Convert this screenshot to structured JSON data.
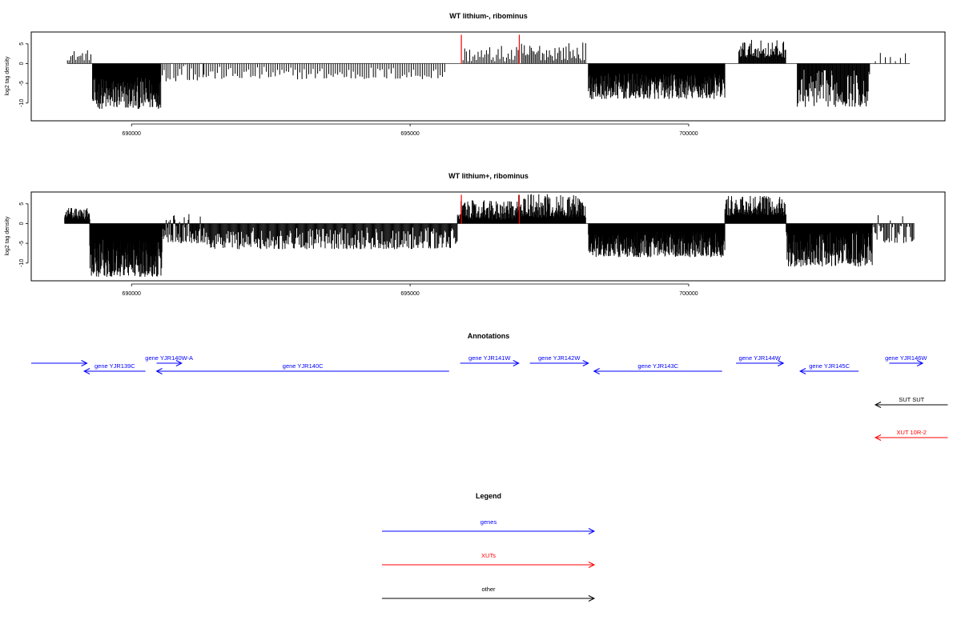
{
  "chart_data": [
    {
      "type": "bar",
      "title": "WT lithium-, ribominus",
      "xlabel": "",
      "ylabel": "log2 tag density",
      "xlim": [
        688200,
        704600
      ],
      "ylim": [
        -14.5,
        8
      ],
      "x_ticks": [
        690000,
        695000,
        700000
      ],
      "x_tick_labels": [
        "690000",
        "695000",
        "700000"
      ],
      "y_ticks": [
        5,
        0,
        -5,
        -10
      ],
      "y_tick_labels": [
        "5",
        "0",
        "-5",
        "-10"
      ],
      "bar_color": "#000000",
      "highlight_color": "#ff0000",
      "highlights": [
        {
          "x": 695920,
          "value": 7.3
        },
        {
          "x": 696960,
          "value": 7.3
        }
      ],
      "regions": [
        {
          "from": 688850,
          "to": 689290,
          "min": 0.8,
          "max": 3.5,
          "step": 30
        },
        {
          "from": 689300,
          "to": 690530,
          "min": -11.5,
          "max": -3.5,
          "step": 8
        },
        {
          "from": 690550,
          "to": 691300,
          "min": -4.5,
          "max": 2.5,
          "step": 35
        },
        {
          "from": 691300,
          "to": 695650,
          "min": -4,
          "max": -0.8,
          "step": 40
        },
        {
          "from": 695950,
          "to": 696950,
          "min": 0.5,
          "max": 4.5,
          "step": 30
        },
        {
          "from": 697000,
          "to": 698150,
          "min": 0.8,
          "max": 5.5,
          "step": 25
        },
        {
          "from": 698200,
          "to": 700650,
          "min": -9,
          "max": -2.5,
          "step": 8
        },
        {
          "from": 700900,
          "to": 701750,
          "min": 1.5,
          "max": 6,
          "step": 12
        },
        {
          "from": 701950,
          "to": 703250,
          "min": -11,
          "max": -1.5,
          "step": 12
        },
        {
          "from": 703350,
          "to": 703970,
          "min": 0.3,
          "max": 2.8,
          "step": 90
        }
      ]
    },
    {
      "type": "bar",
      "title": "WT lithium+, ribominus",
      "xlabel": "",
      "ylabel": "log2 tag density",
      "xlim": [
        688200,
        704600
      ],
      "ylim": [
        -14.5,
        8
      ],
      "x_ticks": [
        690000,
        695000,
        700000
      ],
      "x_tick_labels": [
        "690000",
        "695000",
        "700000"
      ],
      "y_ticks": [
        5,
        0,
        -5,
        -10
      ],
      "y_tick_labels": [
        "5",
        "0",
        "-5",
        "-10"
      ],
      "bar_color": "#000000",
      "highlight_color": "#ff0000",
      "highlights": [
        {
          "x": 695920,
          "value": 7.3
        },
        {
          "x": 696960,
          "value": 7.3
        }
      ],
      "regions": [
        {
          "from": 688800,
          "to": 689250,
          "min": 1,
          "max": 4,
          "step": 6
        },
        {
          "from": 689250,
          "to": 690550,
          "min": -13.5,
          "max": -4,
          "step": 6
        },
        {
          "from": 690550,
          "to": 691300,
          "min": -5,
          "max": 3.5,
          "step": 12
        },
        {
          "from": 691300,
          "to": 695850,
          "min": -6.5,
          "max": -1,
          "step": 15
        },
        {
          "from": 695850,
          "to": 696950,
          "min": 1,
          "max": 6,
          "step": 8
        },
        {
          "from": 696950,
          "to": 698150,
          "min": 1.5,
          "max": 7.5,
          "step": 8
        },
        {
          "from": 698200,
          "to": 700650,
          "min": -8.5,
          "max": -2,
          "step": 6
        },
        {
          "from": 700650,
          "to": 701750,
          "min": 2,
          "max": 7,
          "step": 8
        },
        {
          "from": 701750,
          "to": 703300,
          "min": -11,
          "max": -2,
          "step": 8
        },
        {
          "from": 703300,
          "to": 704050,
          "min": -5,
          "max": 2.5,
          "step": 20
        }
      ]
    }
  ],
  "annotations": {
    "title": "Annotations",
    "features": [
      {
        "label": "",
        "from": 688200,
        "to": 689200,
        "strand": "+",
        "lane": "upper",
        "color": "#0000ff"
      },
      {
        "label": "gene YJR139C",
        "from": 689150,
        "to": 690250,
        "strand": "-",
        "lane": "lower",
        "color": "#0000ff"
      },
      {
        "label": "gene YJR140W-A",
        "from": 690450,
        "to": 690900,
        "strand": "+",
        "lane": "upper",
        "color": "#0000ff"
      },
      {
        "label": "gene YJR140C",
        "from": 690450,
        "to": 695700,
        "strand": "-",
        "lane": "lower",
        "color": "#0000ff"
      },
      {
        "label": "gene YJR141W",
        "from": 695900,
        "to": 696950,
        "strand": "+",
        "lane": "upper",
        "color": "#0000ff"
      },
      {
        "label": "gene YJR142W",
        "from": 697150,
        "to": 698200,
        "strand": "+",
        "lane": "upper",
        "color": "#0000ff"
      },
      {
        "label": "gene YJR143C",
        "from": 698300,
        "to": 700600,
        "strand": "-",
        "lane": "lower",
        "color": "#0000ff"
      },
      {
        "label": "gene YJR144W",
        "from": 700850,
        "to": 701700,
        "strand": "+",
        "lane": "upper",
        "color": "#0000ff"
      },
      {
        "label": "gene YJR145C",
        "from": 702000,
        "to": 703050,
        "strand": "-",
        "lane": "lower",
        "color": "#0000ff"
      },
      {
        "label": "gene YJR146W",
        "from": 703600,
        "to": 704200,
        "strand": "+",
        "lane": "upper",
        "color": "#0000ff"
      },
      {
        "label": "SUT SUT",
        "from": 703350,
        "to": 704650,
        "strand": "-",
        "lane": "sut",
        "color": "#000000"
      },
      {
        "label": "XUT 10R-2",
        "from": 703350,
        "to": 704650,
        "strand": "-",
        "lane": "xut",
        "color": "#ff0000"
      }
    ]
  },
  "legend": {
    "title": "Legend",
    "items": [
      {
        "label": "genes",
        "color": "#0000ff"
      },
      {
        "label": "XUTs",
        "color": "#ff0000"
      },
      {
        "label": "other",
        "color": "#000000"
      }
    ]
  }
}
